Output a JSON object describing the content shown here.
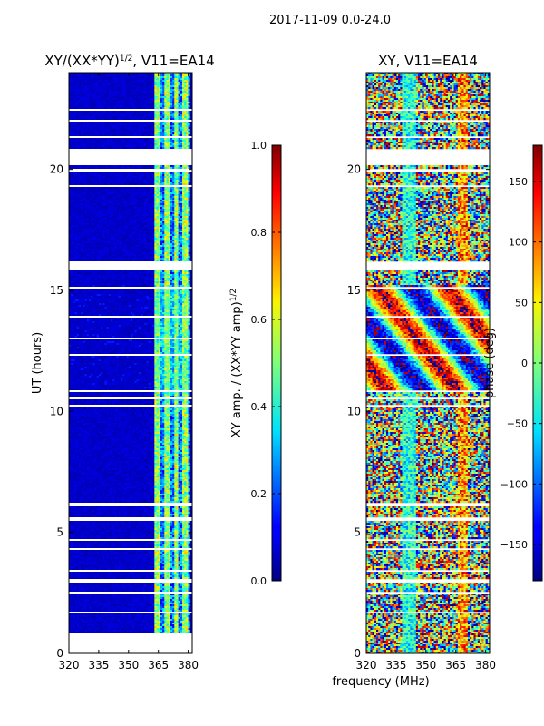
{
  "figure": {
    "suptitle": "2017-11-09 0.0-24.0",
    "shared_xlabel": "frequency (MHz)"
  },
  "colors": {
    "background": "#ffffff",
    "masked_band": "#ffffff",
    "jet_dark_blue": "#00007f",
    "jet_blue": "#0000ff",
    "jet_cyan": "#00ffff",
    "jet_yellow": "#ffff00",
    "jet_red": "#ff0000",
    "jet_dark_red": "#7f0000"
  },
  "chart_data": [
    {
      "type": "heatmap",
      "title": "XY/(XX*YY)$^{1/2}$, V11=EA14",
      "title_main": "XY/(XX*YY)",
      "title_exponent": "1/2",
      "title_suffix": ", V11=EA14",
      "xlabel": "",
      "ylabel": "UT (hours)",
      "xlim": [
        320,
        382
      ],
      "ylim": [
        0,
        24
      ],
      "xticks": [
        320,
        335,
        350,
        365,
        380
      ],
      "yticks": [
        0,
        5,
        10,
        15,
        20
      ],
      "colormap": "jet",
      "colorbar": {
        "label": "XY amp. / (XX*YY amp)$^{1/2}$",
        "label_main": "XY amp. / (XX*YY amp)",
        "label_exponent": "1/2",
        "range": [
          0.0,
          1.0
        ],
        "ticks": [
          "0.0",
          "0.2",
          "0.4",
          "0.6",
          "0.8",
          "1.0"
        ]
      },
      "description": "normalized amplitude; mostly ~0.05 below 363 MHz, bright vertical stripes 0.3-0.7 at 363-382 MHz, stronger 11-15 h",
      "masked_time_ranges_hours": [
        [
          0,
          0.8
        ],
        [
          1.65,
          1.75
        ],
        [
          2.0,
          2.05
        ],
        [
          2.45,
          2.55
        ],
        [
          2.9,
          3.05
        ],
        [
          3.35,
          3.45
        ],
        [
          4.25,
          4.35
        ],
        [
          4.65,
          4.75
        ],
        [
          5.5,
          5.6
        ],
        [
          6.1,
          6.2
        ],
        [
          8.3,
          8.35
        ],
        [
          9.5,
          9.55
        ],
        [
          10.2,
          10.3
        ],
        [
          10.5,
          10.55
        ],
        [
          10.8,
          10.85
        ],
        [
          12.3,
          12.35
        ],
        [
          13.0,
          13.05
        ],
        [
          13.9,
          13.95
        ],
        [
          15.1,
          15.15
        ],
        [
          15.85,
          16.2
        ],
        [
          16.4,
          16.45
        ],
        [
          17.0,
          17.05
        ],
        [
          17.6,
          17.65
        ],
        [
          18.05,
          18.1
        ],
        [
          18.65,
          18.7
        ],
        [
          19.3,
          19.35
        ],
        [
          19.9,
          20.0
        ],
        [
          20.2,
          20.85
        ],
        [
          21.3,
          21.35
        ],
        [
          22.0,
          22.05
        ],
        [
          22.45,
          22.5
        ],
        [
          23.0,
          23.05
        ],
        [
          23.45,
          23.5
        ]
      ]
    },
    {
      "type": "heatmap",
      "title": "XY, V11=EA14",
      "title_main": "XY, V11=EA14",
      "xlabel": "",
      "ylabel": "",
      "xlim": [
        320,
        382
      ],
      "ylim": [
        0,
        24
      ],
      "xticks": [
        320,
        335,
        350,
        365,
        380
      ],
      "yticks": [
        0,
        5,
        10,
        15,
        20
      ],
      "colormap": "jet",
      "colorbar": {
        "label": "phase (deg)",
        "range": [
          -180,
          180
        ],
        "ticks": [
          "150",
          "100",
          "50",
          "0",
          "−50",
          "−100",
          "−150"
        ]
      },
      "description": "XY phase across band, near-random noisy phases with coherent wedge structure at 11-15 h",
      "masked_time_ranges_hours": [
        [
          1.65,
          1.75
        ],
        [
          2.0,
          2.05
        ],
        [
          2.45,
          2.55
        ],
        [
          2.9,
          3.05
        ],
        [
          3.35,
          3.45
        ],
        [
          4.25,
          4.35
        ],
        [
          4.65,
          4.75
        ],
        [
          5.5,
          5.6
        ],
        [
          6.1,
          6.2
        ],
        [
          8.3,
          8.35
        ],
        [
          9.5,
          9.55
        ],
        [
          10.2,
          10.3
        ],
        [
          10.5,
          10.55
        ],
        [
          10.8,
          10.85
        ],
        [
          12.3,
          12.35
        ],
        [
          13.0,
          13.05
        ],
        [
          13.9,
          13.95
        ],
        [
          15.1,
          15.15
        ],
        [
          15.85,
          16.2
        ],
        [
          16.4,
          16.45
        ],
        [
          17.0,
          17.05
        ],
        [
          17.6,
          17.65
        ],
        [
          18.05,
          18.1
        ],
        [
          18.65,
          18.7
        ],
        [
          19.3,
          19.35
        ],
        [
          19.9,
          20.0
        ],
        [
          20.2,
          20.85
        ],
        [
          21.3,
          21.35
        ],
        [
          22.0,
          22.05
        ],
        [
          22.45,
          22.5
        ],
        [
          23.0,
          23.05
        ],
        [
          23.45,
          23.5
        ]
      ]
    }
  ]
}
